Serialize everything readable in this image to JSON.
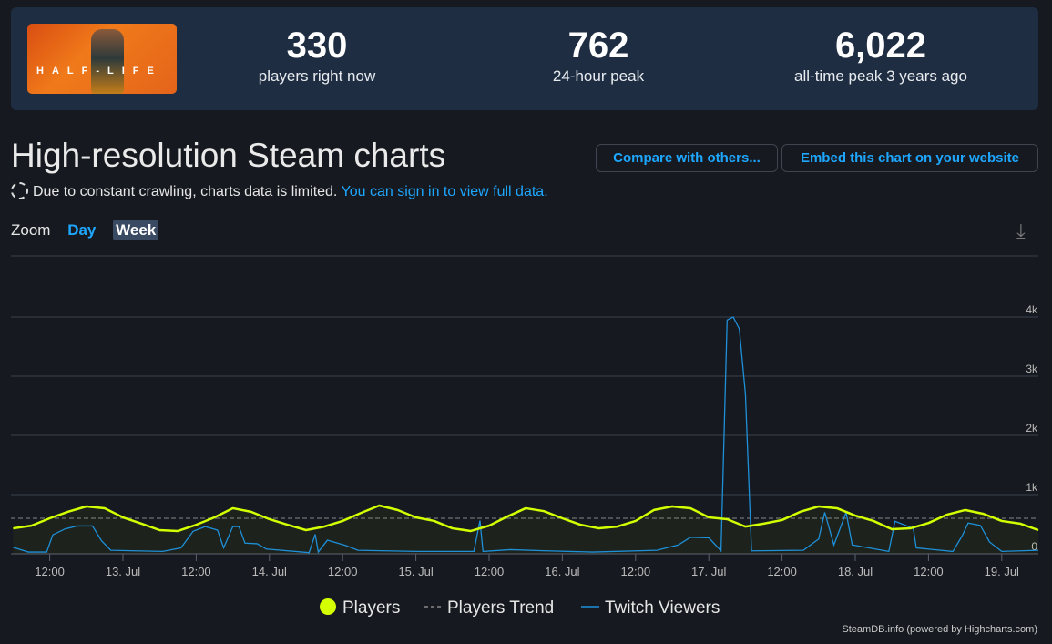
{
  "header": {
    "game_logo_text": "HALF-LIFE",
    "stats": [
      {
        "value": "330",
        "label": "players right now"
      },
      {
        "value": "762",
        "label": "24-hour peak"
      },
      {
        "value": "6,022",
        "label": "all-time peak 3 years ago"
      }
    ]
  },
  "title": "High-resolution Steam charts",
  "notice": {
    "text": "Due to constant crawling, charts data is limited.",
    "link": "You can sign in to view full data."
  },
  "buttons": {
    "compare": "Compare with others...",
    "embed": "Embed this chart on your website"
  },
  "zoom": {
    "label": "Zoom",
    "day": "Day",
    "week": "Week",
    "selected": "Week"
  },
  "colors": {
    "players": "#d4ff00",
    "trend": "#888888",
    "twitch": "#1e90d8",
    "accent": "#1ea7ff"
  },
  "credit": "SteamDB.info (powered by Highcharts.com)",
  "chart_data": {
    "type": "line",
    "ylim": [
      0,
      4000
    ],
    "y_ticks": [
      "0",
      "1k",
      "2k",
      "3k",
      "4k"
    ],
    "x_ticks": [
      "12:00",
      "13. Jul",
      "12:00",
      "14. Jul",
      "12:00",
      "15. Jul",
      "12:00",
      "16. Jul",
      "12:00",
      "17. Jul",
      "12:00",
      "18. Jul",
      "12:00",
      "19. Jul"
    ],
    "grid": true,
    "legend_position": "bottom",
    "legend": [
      "Players",
      "Players Trend",
      "Twitch Viewers"
    ],
    "players_trend": 600,
    "series": [
      {
        "name": "Players",
        "points": [
          [
            "Jul 12 06:00",
            430
          ],
          [
            "Jul 12 09:00",
            475
          ],
          [
            "Jul 12 12:00",
            600
          ],
          [
            "Jul 12 15:00",
            710
          ],
          [
            "Jul 12 18:00",
            800
          ],
          [
            "Jul 12 21:00",
            770
          ],
          [
            "Jul 13 00:00",
            615
          ],
          [
            "Jul 13 03:00",
            510
          ],
          [
            "Jul 13 06:00",
            400
          ],
          [
            "Jul 13 09:00",
            385
          ],
          [
            "Jul 13 12:00",
            490
          ],
          [
            "Jul 13 15:00",
            615
          ],
          [
            "Jul 13 18:00",
            770
          ],
          [
            "Jul 13 21:00",
            710
          ],
          [
            "Jul 14 00:00",
            585
          ],
          [
            "Jul 14 03:00",
            490
          ],
          [
            "Jul 14 06:00",
            400
          ],
          [
            "Jul 14 09:00",
            460
          ],
          [
            "Jul 14 12:00",
            555
          ],
          [
            "Jul 14 15:00",
            690
          ],
          [
            "Jul 14 18:00",
            815
          ],
          [
            "Jul 14 21:00",
            740
          ],
          [
            "Jul 15 00:00",
            615
          ],
          [
            "Jul 15 03:00",
            555
          ],
          [
            "Jul 15 06:00",
            430
          ],
          [
            "Jul 15 09:00",
            385
          ],
          [
            "Jul 15 12:00",
            475
          ],
          [
            "Jul 15 15:00",
            630
          ],
          [
            "Jul 15 18:00",
            770
          ],
          [
            "Jul 15 21:00",
            720
          ],
          [
            "Jul 16 00:00",
            600
          ],
          [
            "Jul 16 03:00",
            490
          ],
          [
            "Jul 16 06:00",
            430
          ],
          [
            "Jul 16 09:00",
            460
          ],
          [
            "Jul 16 12:00",
            555
          ],
          [
            "Jul 16 15:00",
            740
          ],
          [
            "Jul 16 18:00",
            800
          ],
          [
            "Jul 16 21:00",
            770
          ],
          [
            "Jul 17 00:00",
            615
          ],
          [
            "Jul 17 03:00",
            585
          ],
          [
            "Jul 17 06:00",
            460
          ],
          [
            "Jul 17 09:00",
            510
          ],
          [
            "Jul 17 12:00",
            570
          ],
          [
            "Jul 17 15:00",
            710
          ],
          [
            "Jul 17 18:00",
            800
          ],
          [
            "Jul 17 21:00",
            770
          ],
          [
            "Jul 18 00:00",
            645
          ],
          [
            "Jul 18 03:00",
            555
          ],
          [
            "Jul 18 06:00",
            415
          ],
          [
            "Jul 18 09:00",
            430
          ],
          [
            "Jul 18 12:00",
            520
          ],
          [
            "Jul 18 15:00",
            660
          ],
          [
            "Jul 18 18:00",
            740
          ],
          [
            "Jul 18 21:00",
            675
          ],
          [
            "Jul 19 00:00",
            555
          ],
          [
            "Jul 19 03:00",
            510
          ],
          [
            "Jul 19 06:00",
            400
          ]
        ]
      },
      {
        "name": "Twitch Viewers",
        "points": [
          [
            "Jul 12 06:00",
            110
          ],
          [
            "Jul 12 08:30",
            30
          ],
          [
            "Jul 12 11:30",
            30
          ],
          [
            "Jul 12 12:30",
            320
          ],
          [
            "Jul 12 14:30",
            420
          ],
          [
            "Jul 12 16:30",
            470
          ],
          [
            "Jul 12 19:00",
            470
          ],
          [
            "Jul 12 20:30",
            220
          ],
          [
            "Jul 12 22:00",
            60
          ],
          [
            "Jul 13 06:30",
            40
          ],
          [
            "Jul 13 09:30",
            100
          ],
          [
            "Jul 13 11:30",
            380
          ],
          [
            "Jul 13 13:30",
            460
          ],
          [
            "Jul 13 15:30",
            400
          ],
          [
            "Jul 13 16:30",
            100
          ],
          [
            "Jul 13 18:00",
            460
          ],
          [
            "Jul 13 19:00",
            460
          ],
          [
            "Jul 13 20:00",
            180
          ],
          [
            "Jul 13 22:00",
            170
          ],
          [
            "Jul 13 23:30",
            80
          ],
          [
            "Jul 14 06:30",
            20
          ],
          [
            "Jul 14 07:30",
            330
          ],
          [
            "Jul 14 08:00",
            30
          ],
          [
            "Jul 14 09:30",
            230
          ],
          [
            "Jul 14 12:30",
            140
          ],
          [
            "Jul 14 14:30",
            60
          ],
          [
            "Jul 15 00:00",
            40
          ],
          [
            "Jul 15 09:30",
            40
          ],
          [
            "Jul 15 10:30",
            560
          ],
          [
            "Jul 15 11:00",
            40
          ],
          [
            "Jul 15 15:30",
            70
          ],
          [
            "Jul 15 21:30",
            50
          ],
          [
            "Jul 16 05:00",
            30
          ],
          [
            "Jul 16 15:30",
            60
          ],
          [
            "Jul 16 19:00",
            150
          ],
          [
            "Jul 16 21:00",
            280
          ],
          [
            "Jul 17 00:00",
            270
          ],
          [
            "Jul 17 02:00",
            50
          ],
          [
            "Jul 17 03:00",
            3950
          ],
          [
            "Jul 17 04:00",
            4000
          ],
          [
            "Jul 17 05:00",
            3800
          ],
          [
            "Jul 17 06:00",
            2700
          ],
          [
            "Jul 17 07:00",
            50
          ],
          [
            "Jul 17 15:30",
            60
          ],
          [
            "Jul 17 18:00",
            250
          ],
          [
            "Jul 17 19:00",
            700
          ],
          [
            "Jul 17 20:30",
            150
          ],
          [
            "Jul 17 22:30",
            700
          ],
          [
            "Jul 17 23:30",
            150
          ],
          [
            "Jul 18 05:30",
            40
          ],
          [
            "Jul 18 06:30",
            550
          ],
          [
            "Jul 18 09:30",
            430
          ],
          [
            "Jul 18 10:00",
            100
          ],
          [
            "Jul 18 16:00",
            40
          ],
          [
            "Jul 18 17:30",
            300
          ],
          [
            "Jul 18 18:30",
            520
          ],
          [
            "Jul 18 20:30",
            480
          ],
          [
            "Jul 18 22:00",
            200
          ],
          [
            "Jul 19 00:00",
            40
          ],
          [
            "Jul 19 06:00",
            60
          ]
        ]
      }
    ]
  }
}
